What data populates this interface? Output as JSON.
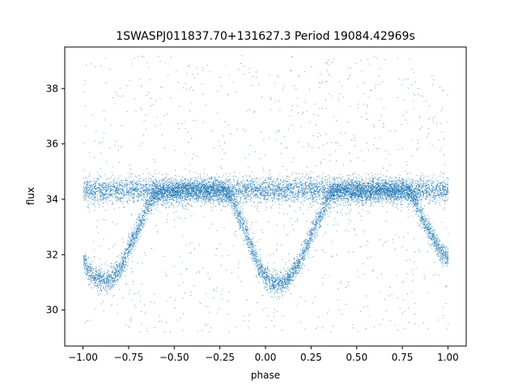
{
  "chart_data": {
    "type": "scatter",
    "title": "1SWASPJ011837.70+131627.3 Period 19084.42969s",
    "xlabel": "phase",
    "ylabel": "flux",
    "xlim": [
      -1.1,
      1.1
    ],
    "ylim": [
      28.7,
      39.5
    ],
    "x_ticks": [
      -1.0,
      -0.75,
      -0.5,
      -0.25,
      0.0,
      0.25,
      0.5,
      0.75,
      1.0
    ],
    "x_tick_labels": [
      "−1.00",
      "−0.75",
      "−0.50",
      "−0.25",
      "0.00",
      "0.25",
      "0.50",
      "0.75",
      "1.00"
    ],
    "y_ticks": [
      30,
      32,
      34,
      36,
      38
    ],
    "y_tick_labels": [
      "30",
      "32",
      "34",
      "36",
      "38"
    ],
    "grid": false,
    "legend": "none",
    "series": [
      {
        "color": "#1f77b4",
        "x": [
          -1.0,
          -0.97,
          -0.94,
          -0.9,
          -0.87,
          -0.84,
          -0.8,
          -0.77,
          -0.74,
          -0.7,
          -0.67,
          -0.64,
          -0.6,
          -0.57,
          -0.54,
          -0.5,
          -0.47,
          -0.44,
          -0.4,
          -0.37,
          -0.34,
          -0.3,
          -0.27,
          -0.24,
          -0.2,
          -0.17,
          -0.14,
          -0.1,
          -0.07,
          -0.04,
          0.0,
          0.03,
          0.06,
          0.1,
          0.13,
          0.16,
          0.2,
          0.23,
          0.26,
          0.3,
          0.33,
          0.36,
          0.4,
          0.43,
          0.46,
          0.5,
          0.53,
          0.56,
          0.6,
          0.63,
          0.66,
          0.7,
          0.73,
          0.76,
          0.8,
          0.83,
          0.86,
          0.9,
          0.93,
          0.96,
          1.0
        ],
        "y": [
          31.9,
          31.4,
          31.2,
          31.1,
          31.1,
          31.2,
          31.5,
          31.9,
          32.4,
          32.9,
          33.4,
          33.9,
          34.2,
          34.3,
          34.3,
          34.3,
          34.3,
          34.3,
          34.3,
          34.3,
          34.3,
          34.3,
          34.3,
          34.3,
          34.2,
          33.8,
          33.3,
          32.7,
          32.1,
          31.6,
          31.2,
          31.0,
          30.9,
          31.0,
          31.2,
          31.5,
          31.9,
          32.4,
          32.9,
          33.4,
          33.9,
          34.2,
          34.3,
          34.3,
          34.3,
          34.3,
          34.3,
          34.3,
          34.3,
          34.3,
          34.3,
          34.3,
          34.3,
          34.3,
          34.2,
          33.8,
          33.3,
          32.8,
          32.4,
          32.1,
          31.9
        ],
        "constant_level": 34.35,
        "point_count": 14000
      }
    ]
  }
}
